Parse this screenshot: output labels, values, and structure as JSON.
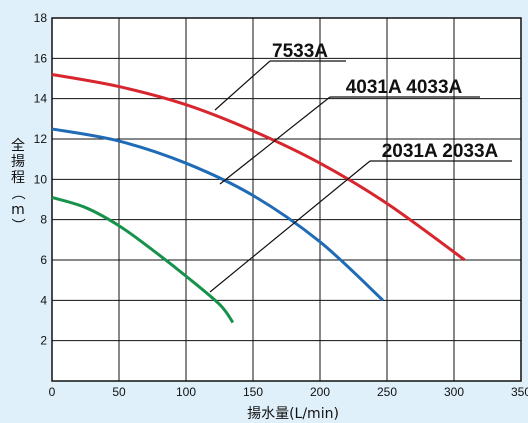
{
  "chart_data": {
    "type": "line",
    "xlabel": "揚水量(L/min)",
    "ylabel": "全揚程（m）",
    "xlim": [
      0,
      350
    ],
    "ylim": [
      0,
      18
    ],
    "x_ticks": [
      0,
      50,
      100,
      150,
      200,
      250,
      300,
      350
    ],
    "y_ticks": [
      2,
      4,
      6,
      8,
      10,
      12,
      14,
      16,
      18
    ],
    "grid": true,
    "series": [
      {
        "name": "7533A",
        "color": "#d7262d",
        "x": [
          0,
          50,
          100,
          150,
          200,
          250,
          308
        ],
        "y": [
          15.2,
          14.6,
          13.7,
          12.4,
          10.8,
          8.8,
          6.0
        ]
      },
      {
        "name": "4031A 4033A",
        "color": "#1f6bb5",
        "x": [
          0,
          50,
          100,
          150,
          200,
          247
        ],
        "y": [
          12.5,
          11.9,
          10.8,
          9.2,
          6.9,
          4.0
        ]
      },
      {
        "name": "2031A 2033A",
        "color": "#16924b",
        "x": [
          0,
          25,
          50,
          75,
          100,
          125,
          135
        ],
        "y": [
          9.1,
          8.6,
          7.7,
          6.5,
          5.2,
          3.8,
          2.9
        ]
      }
    ]
  }
}
